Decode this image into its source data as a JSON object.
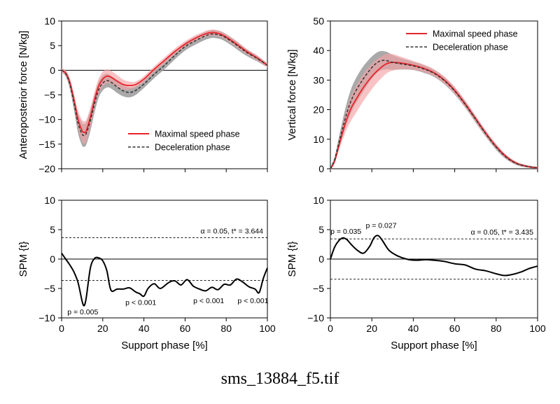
{
  "caption": "sms_13884_f5.tif",
  "colors": {
    "max_speed": "#e8242b",
    "max_band": "#f4a3a6",
    "decel": "#333333",
    "decel_band": "#9a9a9a",
    "axis": "#000000",
    "zero_line": "#000000"
  },
  "chart_data": [
    {
      "id": "ap",
      "type": "line",
      "ylabel": "Anteroposterior force [N/kg]",
      "xlim": [
        0,
        100
      ],
      "ylim": [
        -20,
        10
      ],
      "yticks": [
        10,
        5,
        0,
        -5,
        -10,
        -15,
        -20
      ],
      "ytick_labels": [
        "10",
        "5",
        "0",
        "−5",
        "−10",
        "−15",
        "−20"
      ],
      "xticks": [
        0,
        20,
        40,
        60,
        80,
        100
      ],
      "show_x_tick_labels": false,
      "zero_line": true,
      "legend": {
        "placement": "bottom-right",
        "entries": [
          "Maximal speed phase",
          "Deceleration phase"
        ]
      },
      "series": [
        {
          "name": "Maximal speed phase",
          "style": "solid",
          "x": [
            0,
            2,
            4,
            6,
            8,
            10,
            11,
            12,
            14,
            16,
            18,
            20,
            22,
            24,
            27,
            30,
            33,
            36,
            40,
            45,
            50,
            55,
            60,
            65,
            70,
            73,
            75,
            78,
            82,
            86,
            90,
            95,
            100
          ],
          "y": [
            0,
            -0.6,
            -2.5,
            -6.0,
            -10.0,
            -12.3,
            -12.6,
            -12.3,
            -9.5,
            -6.0,
            -3.2,
            -1.8,
            -1.2,
            -1.4,
            -2.2,
            -2.9,
            -3.1,
            -2.9,
            -1.8,
            0.2,
            2.0,
            3.8,
            5.3,
            6.5,
            7.4,
            7.65,
            7.6,
            7.2,
            6.2,
            5.0,
            3.8,
            2.5,
            1.0
          ],
          "band": [
            0.4,
            0.6,
            0.9,
            1.3,
            1.8,
            2.2,
            2.3,
            2.2,
            1.9,
            1.6,
            1.5,
            1.5,
            1.4,
            1.3,
            1.2,
            1.0,
            0.8,
            0.6,
            0.6,
            0.6,
            0.6,
            0.6,
            0.6,
            0.6,
            0.6,
            0.6,
            0.6,
            0.6,
            0.6,
            0.6,
            0.5,
            0.5,
            0.4
          ]
        },
        {
          "name": "Deceleration phase",
          "style": "dashed",
          "x": [
            0,
            2,
            4,
            6,
            8,
            10,
            11,
            12,
            14,
            16,
            18,
            20,
            22,
            24,
            27,
            30,
            33,
            36,
            40,
            45,
            50,
            55,
            60,
            65,
            70,
            73,
            75,
            78,
            82,
            86,
            90,
            95,
            100
          ],
          "y": [
            0,
            -0.7,
            -2.8,
            -6.6,
            -10.8,
            -13.0,
            -13.2,
            -12.8,
            -10.2,
            -6.8,
            -4.0,
            -2.6,
            -2.1,
            -2.4,
            -3.4,
            -4.2,
            -4.5,
            -4.1,
            -2.8,
            -0.8,
            1.0,
            3.0,
            4.8,
            6.0,
            7.0,
            7.35,
            7.3,
            7.0,
            6.0,
            4.8,
            3.6,
            2.4,
            1.0
          ],
          "band": [
            0.4,
            0.6,
            1.0,
            1.5,
            2.0,
            2.3,
            2.3,
            2.3,
            2.1,
            1.8,
            1.6,
            1.5,
            1.4,
            1.3,
            1.2,
            1.1,
            1.0,
            0.9,
            0.8,
            0.8,
            0.8,
            0.8,
            0.8,
            0.8,
            0.8,
            0.8,
            0.8,
            0.8,
            0.8,
            0.8,
            0.7,
            0.6,
            0.4
          ]
        }
      ]
    },
    {
      "id": "vert",
      "type": "line",
      "ylabel": "Vertical force [N/kg]",
      "xlim": [
        0,
        100
      ],
      "ylim": [
        0,
        50
      ],
      "yticks": [
        0,
        10,
        20,
        30,
        40,
        50
      ],
      "ytick_labels": [
        "0",
        "10",
        "20",
        "30",
        "40",
        "50"
      ],
      "xticks": [
        0,
        20,
        40,
        60,
        80,
        100
      ],
      "show_x_tick_labels": false,
      "zero_line": false,
      "legend": {
        "placement": "top-right",
        "entries": [
          "Maximal speed phase",
          "Deceleration phase"
        ]
      },
      "series": [
        {
          "name": "Maximal speed phase",
          "style": "solid",
          "x": [
            0,
            2,
            4,
            6,
            8,
            10,
            12,
            15,
            18,
            21,
            24,
            27,
            30,
            35,
            40,
            45,
            50,
            55,
            60,
            65,
            70,
            75,
            80,
            85,
            90,
            95,
            100
          ],
          "y": [
            0,
            2.5,
            7.5,
            12.5,
            17.0,
            20.5,
            23.0,
            26.5,
            29.5,
            32.0,
            34.0,
            35.5,
            36.0,
            35.7,
            35.0,
            34.0,
            32.5,
            30.0,
            26.5,
            22.0,
            17.0,
            12.0,
            7.5,
            4.0,
            1.8,
            0.8,
            0.3
          ],
          "band": [
            0.4,
            0.8,
            1.5,
            2.5,
            3.5,
            4.2,
            4.5,
            4.6,
            4.5,
            4.2,
            3.8,
            3.3,
            2.8,
            2.0,
            1.5,
            1.3,
            1.2,
            1.2,
            1.2,
            1.2,
            1.1,
            1.0,
            0.9,
            0.7,
            0.5,
            0.4,
            0.3
          ]
        },
        {
          "name": "Deceleration phase",
          "style": "dashed",
          "x": [
            0,
            2,
            4,
            6,
            8,
            10,
            12,
            15,
            18,
            21,
            24,
            27,
            30,
            35,
            40,
            45,
            50,
            55,
            60,
            65,
            70,
            75,
            80,
            85,
            90,
            95,
            100
          ],
          "y": [
            0,
            3.0,
            8.5,
            14.0,
            19.0,
            23.0,
            26.0,
            29.5,
            32.5,
            35.0,
            36.5,
            36.6,
            36.0,
            35.4,
            34.8,
            33.8,
            32.3,
            29.8,
            26.3,
            21.8,
            16.8,
            11.8,
            7.3,
            3.8,
            1.7,
            0.8,
            0.3
          ],
          "band": [
            0.5,
            1.0,
            1.8,
            2.8,
            3.5,
            4.0,
            4.2,
            4.3,
            4.0,
            3.6,
            3.3,
            3.0,
            2.5,
            1.8,
            1.4,
            1.3,
            1.2,
            1.2,
            1.2,
            1.1,
            1.1,
            1.0,
            0.9,
            0.7,
            0.5,
            0.4,
            0.3
          ]
        }
      ]
    },
    {
      "id": "spm_ap",
      "type": "line",
      "ylabel": "SPM {t}",
      "xlabel": "Support phase [%]",
      "xlim": [
        0,
        100
      ],
      "ylim": [
        -10,
        10
      ],
      "yticks": [
        10,
        5,
        0,
        -5,
        -10
      ],
      "ytick_labels": [
        "10",
        "5",
        "0",
        "−5",
        "−10"
      ],
      "xticks": [
        0,
        20,
        40,
        60,
        80,
        100
      ],
      "xtick_labels": [
        "0",
        "20",
        "40",
        "60",
        "80",
        "100"
      ],
      "show_x_tick_labels": true,
      "zero_line": true,
      "threshold": 3.644,
      "threshold_label": "α = 0.05, t* = 3.644",
      "annotations": [
        {
          "text": "p = 0.005",
          "x": 10.3,
          "y": -9.4
        },
        {
          "text": "p < 0.001",
          "x": 38.5,
          "y": -7.8
        },
        {
          "text": "p < 0.001",
          "x": 71.5,
          "y": -7.5
        },
        {
          "text": "p < 0.001",
          "x": 93.0,
          "y": -7.5
        }
      ],
      "series": [
        {
          "name": "",
          "style": "solid",
          "x": [
            0,
            2,
            4,
            6,
            8,
            10,
            11,
            12,
            14,
            16,
            18,
            20,
            22,
            24,
            27,
            30,
            33,
            36,
            38,
            40,
            42,
            45,
            48,
            52,
            55,
            58,
            61,
            64,
            67,
            70,
            73,
            76,
            79,
            82,
            85,
            88,
            91,
            94,
            96,
            98,
            100
          ],
          "y": [
            1.0,
            0.0,
            -1.0,
            -2.2,
            -4.0,
            -7.2,
            -7.9,
            -6.5,
            -1.5,
            0.1,
            0.2,
            -0.3,
            -2.0,
            -5.3,
            -5.1,
            -5.1,
            -4.9,
            -5.6,
            -5.9,
            -6.3,
            -5.0,
            -4.2,
            -5.0,
            -4.0,
            -3.7,
            -4.4,
            -3.5,
            -4.6,
            -5.1,
            -5.4,
            -4.8,
            -5.2,
            -4.3,
            -4.4,
            -3.4,
            -3.9,
            -4.7,
            -5.1,
            -5.7,
            -3.3,
            -1.5
          ]
        }
      ]
    },
    {
      "id": "spm_vert",
      "type": "line",
      "ylabel": "SPM {t}",
      "xlabel": "Support phase [%]",
      "xlim": [
        0,
        100
      ],
      "ylim": [
        -10,
        10
      ],
      "yticks": [
        10,
        5,
        0,
        -5,
        -10
      ],
      "ytick_labels": [
        "10",
        "5",
        "0",
        "−5",
        "−10"
      ],
      "xticks": [
        0,
        20,
        40,
        60,
        80,
        100
      ],
      "xtick_labels": [
        "0",
        "20",
        "40",
        "60",
        "80",
        "100"
      ],
      "show_x_tick_labels": true,
      "zero_line": true,
      "threshold": 3.435,
      "threshold_label": "α = 0.05, t* = 3.435",
      "annotations": [
        {
          "text": "p = 0.035",
          "x": 7.5,
          "y": 4.3
        },
        {
          "text": "p = 0.027",
          "x": 24.5,
          "y": 5.3
        }
      ],
      "series": [
        {
          "name": "",
          "style": "solid",
          "x": [
            0,
            2,
            4,
            6,
            8,
            10,
            13,
            16,
            19,
            21,
            23,
            25,
            28,
            31,
            34,
            38,
            42,
            46,
            50,
            55,
            60,
            65,
            70,
            75,
            80,
            84,
            88,
            92,
            96,
            100
          ],
          "y": [
            0,
            2.0,
            3.1,
            3.6,
            3.3,
            2.5,
            1.5,
            1.0,
            2.2,
            3.6,
            4.0,
            3.2,
            1.6,
            0.8,
            0.3,
            -0.1,
            -0.2,
            -0.1,
            -0.2,
            -0.4,
            -0.8,
            -1.0,
            -1.7,
            -2.0,
            -2.5,
            -2.8,
            -2.6,
            -2.2,
            -1.6,
            -1.2
          ]
        }
      ]
    }
  ]
}
